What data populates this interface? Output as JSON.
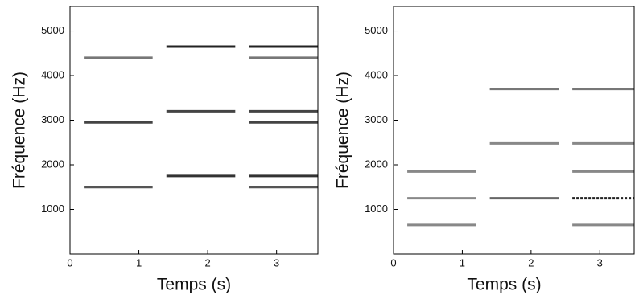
{
  "chart_data": [
    {
      "type": "spectrogram",
      "xlabel": "Temps (s)",
      "ylabel": "Fréquence (Hz)",
      "xlim": [
        0,
        3.6
      ],
      "ylim": [
        0,
        5550
      ],
      "xticks": [
        0,
        1,
        2,
        3
      ],
      "yticks": [
        1000,
        2000,
        3000,
        4000,
        5000
      ],
      "segments": [
        {
          "x": [
            0.2,
            1.2
          ],
          "y": 1500,
          "color": "#555"
        },
        {
          "x": [
            0.2,
            1.2
          ],
          "y": 2950,
          "color": "#444"
        },
        {
          "x": [
            0.2,
            1.2
          ],
          "y": 4400,
          "color": "#777"
        },
        {
          "x": [
            1.4,
            2.4
          ],
          "y": 1750,
          "color": "#333"
        },
        {
          "x": [
            1.4,
            2.4
          ],
          "y": 3200,
          "color": "#444"
        },
        {
          "x": [
            1.4,
            2.4
          ],
          "y": 4650,
          "color": "#222"
        },
        {
          "x": [
            2.6,
            3.6
          ],
          "y": 1500,
          "color": "#555"
        },
        {
          "x": [
            2.6,
            3.6
          ],
          "y": 1750,
          "color": "#333"
        },
        {
          "x": [
            2.6,
            3.6
          ],
          "y": 2950,
          "color": "#444"
        },
        {
          "x": [
            2.6,
            3.6
          ],
          "y": 3200,
          "color": "#444"
        },
        {
          "x": [
            2.6,
            3.6
          ],
          "y": 4400,
          "color": "#777"
        },
        {
          "x": [
            2.6,
            3.6
          ],
          "y": 4650,
          "color": "#222"
        }
      ]
    },
    {
      "type": "spectrogram",
      "xlabel": "Temps (s)",
      "ylabel": "Fréquence (Hz)",
      "xlim": [
        0,
        3.5
      ],
      "ylim": [
        0,
        5550
      ],
      "xticks": [
        0,
        1,
        2,
        3
      ],
      "yticks": [
        1000,
        2000,
        3000,
        4000,
        5000
      ],
      "segments": [
        {
          "x": [
            0.2,
            1.2
          ],
          "y": 650,
          "color": "#888"
        },
        {
          "x": [
            0.2,
            1.2
          ],
          "y": 1250,
          "color": "#888"
        },
        {
          "x": [
            0.2,
            1.2
          ],
          "y": 1850,
          "color": "#888"
        },
        {
          "x": [
            1.4,
            2.4
          ],
          "y": 1250,
          "color": "#666"
        },
        {
          "x": [
            1.4,
            2.4
          ],
          "y": 2480,
          "color": "#888"
        },
        {
          "x": [
            1.4,
            2.4
          ],
          "y": 3700,
          "color": "#777"
        },
        {
          "x": [
            2.6,
            3.5
          ],
          "y": 650,
          "color": "#888"
        },
        {
          "x": [
            2.6,
            3.5
          ],
          "y": 1250,
          "color": "#222",
          "dashed": true
        },
        {
          "x": [
            2.6,
            3.5
          ],
          "y": 1850,
          "color": "#888"
        },
        {
          "x": [
            2.6,
            3.5
          ],
          "y": 2480,
          "color": "#888"
        },
        {
          "x": [
            2.6,
            3.5
          ],
          "y": 3700,
          "color": "#777"
        }
      ]
    }
  ]
}
